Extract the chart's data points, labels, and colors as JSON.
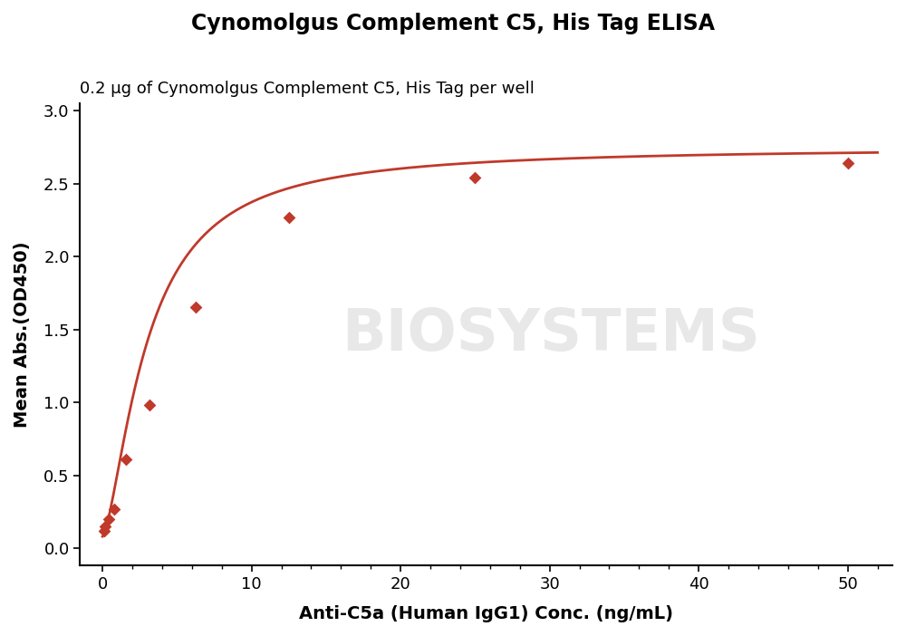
{
  "title": "Cynomolgus Complement C5, His Tag ELISA",
  "subtitle": "0.2 μg of Cynomolgus Complement C5, His Tag per well",
  "xlabel": "Anti-C5a (Human IgG1) Conc. (ng/mL)",
  "ylabel": "Mean Abs.(OD450)",
  "title_fontsize": 17,
  "subtitle_fontsize": 13,
  "label_fontsize": 14,
  "tick_fontsize": 13,
  "data_x": [
    0.098,
    0.195,
    0.391,
    0.781,
    1.563,
    3.125,
    6.25,
    12.5,
    25.0,
    50.0
  ],
  "data_y": [
    0.12,
    0.15,
    0.2,
    0.27,
    0.61,
    0.98,
    1.65,
    2.27,
    2.54,
    2.64
  ],
  "line_color": "#c0392b",
  "marker_color": "#c0392b",
  "marker": "D",
  "marker_size": 7,
  "xlim": [
    -1.5,
    53
  ],
  "ylim": [
    -0.12,
    3.05
  ],
  "xticks": [
    0,
    10,
    20,
    30,
    40,
    50
  ],
  "yticks": [
    0.0,
    0.5,
    1.0,
    1.5,
    2.0,
    2.5,
    3.0
  ],
  "background_color": "#ffffff",
  "watermark_text": "BIOSYSTEMS",
  "watermark_color": "#e8e8e8"
}
